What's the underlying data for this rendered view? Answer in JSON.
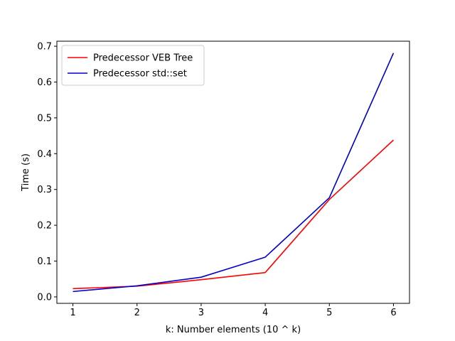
{
  "chart_data": {
    "type": "line",
    "title": "",
    "xlabel": "k: Number elements (10 ^ k)",
    "ylabel": "Time (s)",
    "x": [
      1,
      2,
      3,
      4,
      5,
      6
    ],
    "xlim": [
      0.75,
      6.25
    ],
    "ylim": [
      -0.018,
      0.714
    ],
    "x_ticks": [
      1,
      2,
      3,
      4,
      5,
      6
    ],
    "x_tick_labels": [
      "1",
      "2",
      "3",
      "4",
      "5",
      "6"
    ],
    "y_ticks": [
      0.0,
      0.1,
      0.2,
      0.3,
      0.4,
      0.5,
      0.6,
      0.7
    ],
    "y_tick_labels": [
      "0.0",
      "0.1",
      "0.2",
      "0.3",
      "0.4",
      "0.5",
      "0.6",
      "0.7"
    ],
    "grid": false,
    "legend_position": "top-left",
    "series": [
      {
        "name": "Predecessor VEB Tree",
        "color": "#ff0000",
        "values": [
          0.023,
          0.03,
          0.048,
          0.068,
          0.272,
          0.438
        ]
      },
      {
        "name": "Predecessor std::set",
        "color": "#0000cc",
        "values": [
          0.015,
          0.031,
          0.055,
          0.111,
          0.277,
          0.681
        ]
      }
    ]
  }
}
